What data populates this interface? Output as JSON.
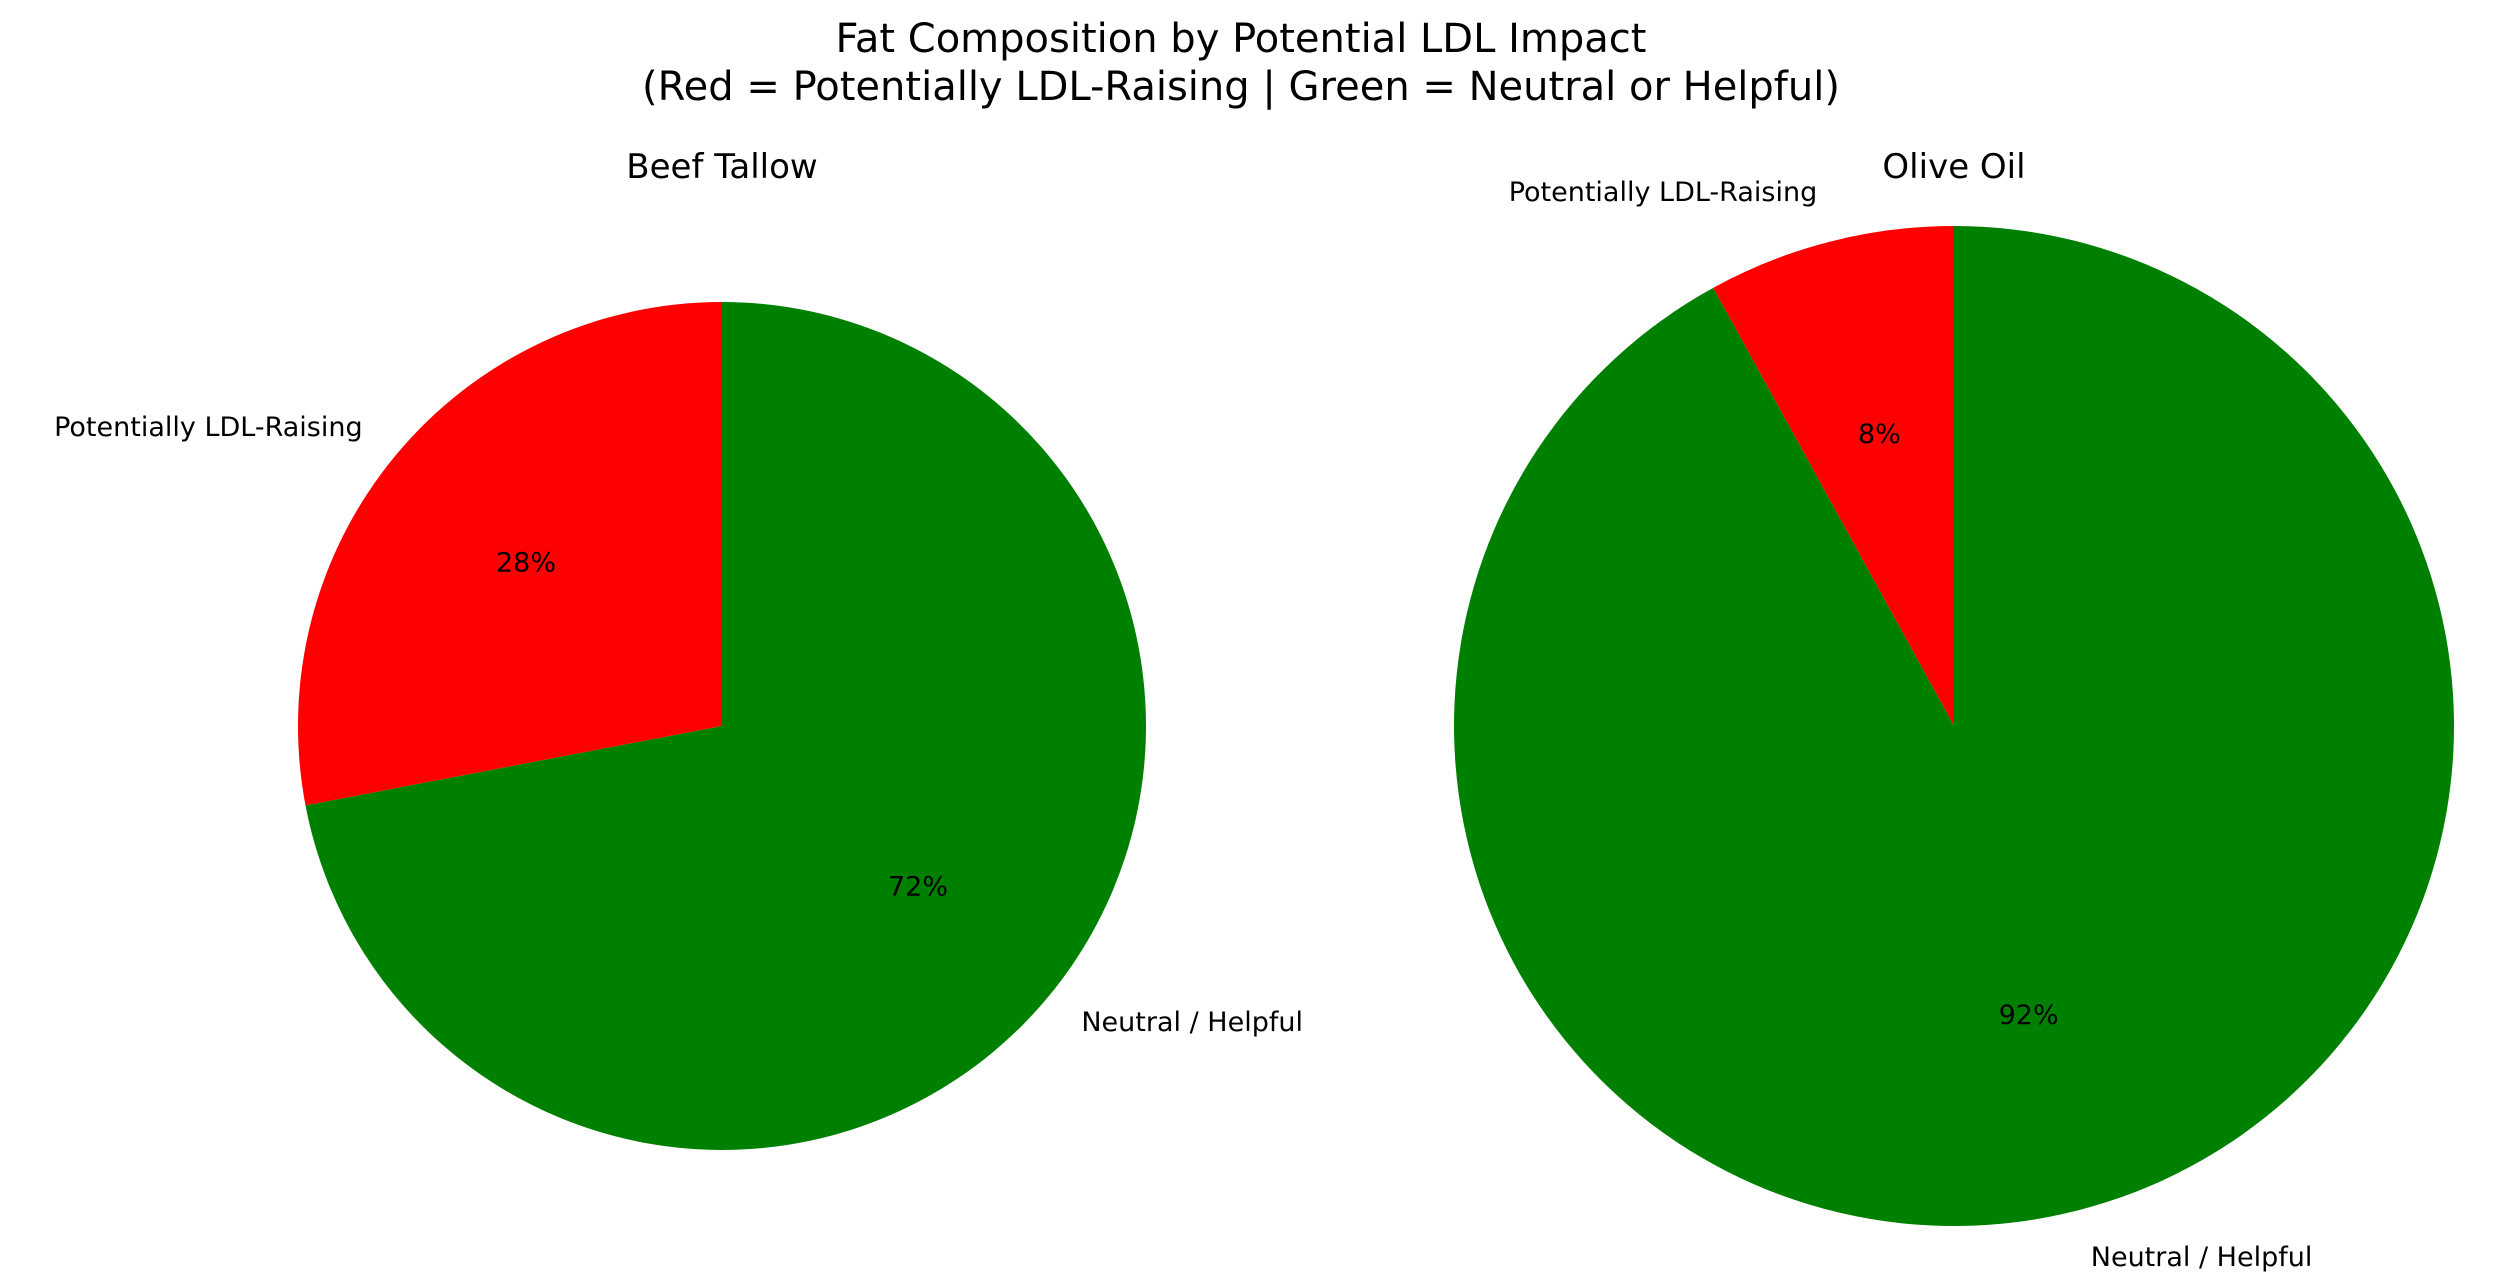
{
  "chart_data": [
    {
      "type": "pie",
      "title": "Beef Tallow",
      "categories": [
        "Potentially LDL-Raising",
        "Neutral / Helpful"
      ],
      "values": [
        28,
        72
      ],
      "value_labels": [
        "28%",
        "72%"
      ],
      "colors": [
        "#ff0000",
        "#008000"
      ],
      "start_angle_deg": 90,
      "direction": "counterclockwise"
    },
    {
      "type": "pie",
      "title": "Olive Oil",
      "categories": [
        "Potentially LDL-Raising",
        "Neutral / Helpful"
      ],
      "values": [
        8,
        92
      ],
      "value_labels": [
        "8%",
        "92%"
      ],
      "colors": [
        "#ff0000",
        "#008000"
      ],
      "start_angle_deg": 90,
      "direction": "counterclockwise"
    }
  ],
  "figure": {
    "suptitle_line1": "Fat Composition by Potential LDL Impact",
    "suptitle_line2": "(Red = Potentially LDL-Raising | Green = Neutral or Helpful)"
  }
}
